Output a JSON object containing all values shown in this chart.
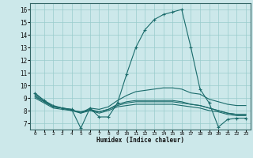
{
  "xlabel": "Humidex (Indice chaleur)",
  "bg_color": "#cce8ea",
  "line_color": "#1a6b6b",
  "grid_color": "#99cccc",
  "xlim": [
    -0.5,
    23.5
  ],
  "ylim": [
    6.5,
    16.5
  ],
  "yticks": [
    7,
    8,
    9,
    10,
    11,
    12,
    13,
    14,
    15,
    16
  ],
  "xticks": [
    0,
    1,
    2,
    3,
    4,
    5,
    6,
    7,
    8,
    9,
    10,
    11,
    12,
    13,
    14,
    15,
    16,
    17,
    18,
    19,
    20,
    21,
    22,
    23
  ],
  "lines": [
    {
      "x": [
        0,
        1,
        2,
        3,
        4,
        5,
        6,
        7,
        8,
        9,
        10,
        11,
        12,
        13,
        14,
        15,
        16,
        17,
        18,
        19,
        20,
        21,
        22,
        23
      ],
      "y": [
        9.4,
        8.8,
        8.4,
        8.2,
        8.1,
        6.6,
        8.2,
        7.5,
        7.5,
        8.6,
        10.9,
        13.0,
        14.4,
        15.2,
        15.6,
        15.8,
        16.0,
        13.0,
        9.7,
        8.6,
        6.7,
        7.3,
        7.4,
        7.4
      ],
      "marker": true
    },
    {
      "x": [
        0,
        1,
        2,
        3,
        4,
        5,
        6,
        7,
        8,
        9,
        10,
        11,
        12,
        13,
        14,
        15,
        16,
        17,
        18,
        19,
        20,
        21,
        22,
        23
      ],
      "y": [
        9.3,
        8.8,
        8.3,
        8.2,
        8.1,
        7.8,
        8.2,
        8.1,
        8.3,
        8.8,
        9.2,
        9.5,
        9.6,
        9.7,
        9.8,
        9.8,
        9.7,
        9.4,
        9.3,
        8.9,
        8.7,
        8.5,
        8.4,
        8.4
      ],
      "marker": false
    },
    {
      "x": [
        0,
        1,
        2,
        3,
        4,
        5,
        6,
        7,
        8,
        9,
        10,
        11,
        12,
        13,
        14,
        15,
        16,
        17,
        18,
        19,
        20,
        21,
        22,
        23
      ],
      "y": [
        9.2,
        8.7,
        8.3,
        8.2,
        8.0,
        7.9,
        8.1,
        7.9,
        8.1,
        8.5,
        8.7,
        8.8,
        8.8,
        8.8,
        8.8,
        8.8,
        8.7,
        8.5,
        8.4,
        8.2,
        8.0,
        7.8,
        7.7,
        7.7
      ],
      "marker": false
    },
    {
      "x": [
        0,
        1,
        2,
        3,
        4,
        5,
        6,
        7,
        8,
        9,
        10,
        11,
        12,
        13,
        14,
        15,
        16,
        17,
        18,
        19,
        20,
        21,
        22,
        23
      ],
      "y": [
        9.1,
        8.7,
        8.3,
        8.2,
        8.0,
        7.9,
        8.0,
        7.9,
        8.1,
        8.4,
        8.6,
        8.7,
        8.7,
        8.7,
        8.7,
        8.7,
        8.6,
        8.5,
        8.4,
        8.2,
        8.0,
        7.8,
        7.7,
        7.7
      ],
      "marker": false
    },
    {
      "x": [
        0,
        1,
        2,
        3,
        4,
        5,
        6,
        7,
        8,
        9,
        10,
        11,
        12,
        13,
        14,
        15,
        16,
        17,
        18,
        19,
        20,
        21,
        22,
        23
      ],
      "y": [
        9.0,
        8.6,
        8.2,
        8.1,
        8.0,
        7.8,
        8.0,
        7.8,
        8.0,
        8.3,
        8.4,
        8.5,
        8.5,
        8.5,
        8.5,
        8.5,
        8.4,
        8.3,
        8.2,
        8.0,
        7.9,
        7.7,
        7.6,
        7.6
      ],
      "marker": false
    }
  ]
}
